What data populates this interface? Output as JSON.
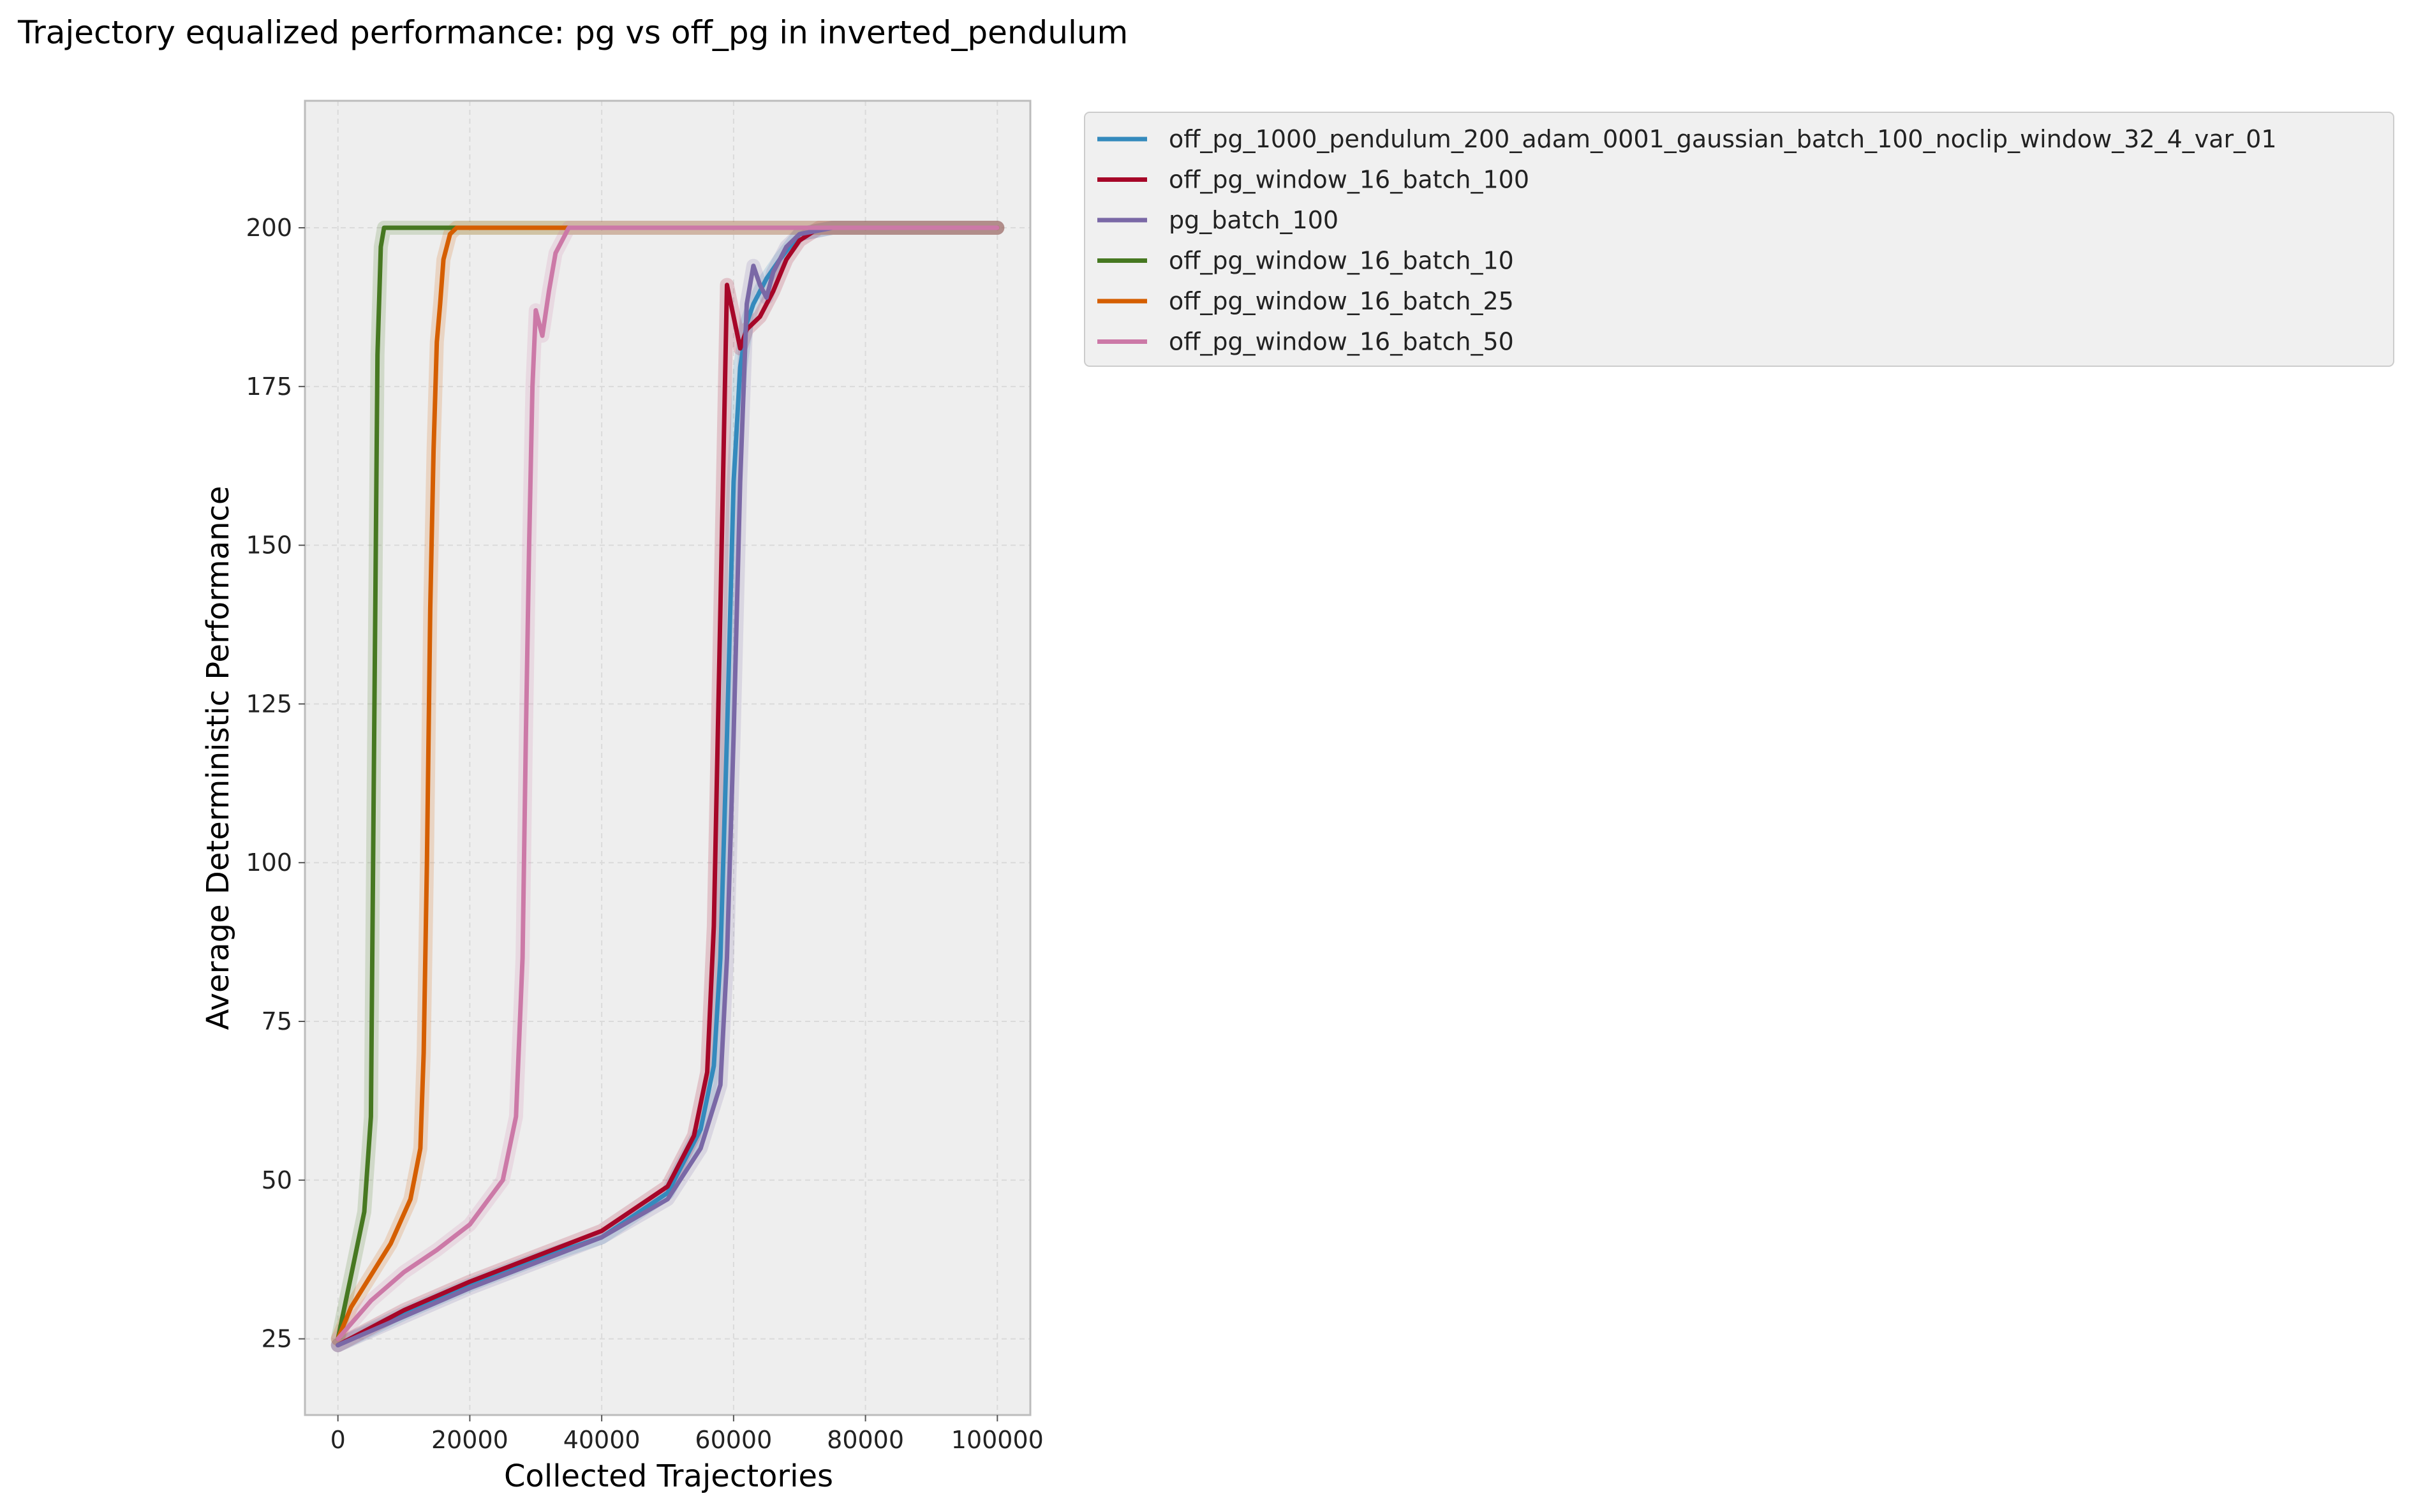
{
  "title": "Trajectory equalized performance: pg vs off_pg in inverted_pendulum",
  "chart_data": {
    "type": "line",
    "title": "Trajectory equalized performance: pg vs off_pg in inverted_pendulum",
    "xlabel": "Collected Trajectories",
    "ylabel": "Average Deterministic Performance",
    "xlim": [
      -5000,
      105000
    ],
    "ylim": [
      13,
      220
    ],
    "xticks": [
      0,
      20000,
      40000,
      60000,
      80000,
      100000
    ],
    "xtick_labels": [
      "0",
      "20000",
      "40000",
      "60000",
      "80000",
      "100000"
    ],
    "yticks": [
      25,
      50,
      75,
      100,
      125,
      150,
      175,
      200
    ],
    "ytick_labels": [
      "25",
      "50",
      "75",
      "100",
      "125",
      "150",
      "175",
      "200"
    ],
    "grid": true,
    "legend_position": "outside-right",
    "series": [
      {
        "name": "off_pg_1000_pendulum_200_adam_0001_gaussian_batch_100_noclip_window_32_4_var_01",
        "color": "#348ABD",
        "x": [
          0,
          10000,
          20000,
          30000,
          40000,
          50000,
          55000,
          57000,
          58000,
          59000,
          60000,
          61000,
          62000,
          63000,
          64000,
          65000,
          67000,
          70000,
          75000,
          100000
        ],
        "y": [
          24,
          29,
          33.5,
          37.5,
          41,
          48,
          58,
          68,
          85,
          120,
          160,
          178,
          185,
          188,
          190,
          192,
          195,
          199,
          200,
          200
        ]
      },
      {
        "name": "off_pg_window_16_batch_100",
        "color": "#A60628",
        "x": [
          0,
          10000,
          20000,
          30000,
          40000,
          50000,
          54000,
          56000,
          57000,
          58000,
          59000,
          60000,
          61000,
          62000,
          64000,
          66000,
          68000,
          70000,
          73000,
          100000
        ],
        "y": [
          24,
          29.5,
          34,
          38,
          42,
          49,
          57,
          67,
          90,
          140,
          191,
          186,
          181,
          184,
          186,
          190,
          195,
          198,
          200,
          200
        ]
      },
      {
        "name": "pg_batch_100",
        "color": "#7A68A6",
        "x": [
          0,
          10000,
          20000,
          30000,
          40000,
          50000,
          55000,
          58000,
          59000,
          60000,
          61000,
          62000,
          63000,
          64000,
          65000,
          66000,
          68000,
          70000,
          75000,
          100000
        ],
        "y": [
          24,
          28.5,
          33,
          37,
          41,
          47,
          55,
          65,
          85,
          120,
          160,
          188,
          194,
          191,
          189,
          193,
          197,
          199,
          200,
          200
        ]
      },
      {
        "name": "off_pg_window_16_batch_10",
        "color": "#467821",
        "x": [
          0,
          1000,
          2000,
          3000,
          4000,
          5000,
          5500,
          6000,
          6500,
          7000,
          8000,
          100000
        ],
        "y": [
          25,
          30,
          35,
          40,
          45,
          60,
          120,
          180,
          197,
          200,
          200,
          200
        ]
      },
      {
        "name": "off_pg_window_16_batch_25",
        "color": "#D55E00",
        "x": [
          0,
          2000,
          5000,
          8000,
          11000,
          12500,
          13000,
          13500,
          14000,
          14500,
          15000,
          15500,
          16000,
          17000,
          18000,
          100000
        ],
        "y": [
          25,
          30,
          35,
          40,
          47,
          55,
          70,
          100,
          140,
          165,
          182,
          188,
          195,
          199,
          200,
          200
        ]
      },
      {
        "name": "off_pg_window_16_batch_50",
        "color": "#CC79A7",
        "x": [
          0,
          5000,
          10000,
          15000,
          20000,
          25000,
          27000,
          28000,
          28500,
          29000,
          29500,
          30000,
          31000,
          32000,
          33000,
          35000,
          100000
        ],
        "y": [
          25,
          31,
          35.5,
          39,
          43,
          50,
          60,
          85,
          120,
          150,
          175,
          187,
          183,
          190,
          196,
          200,
          200
        ]
      }
    ]
  }
}
